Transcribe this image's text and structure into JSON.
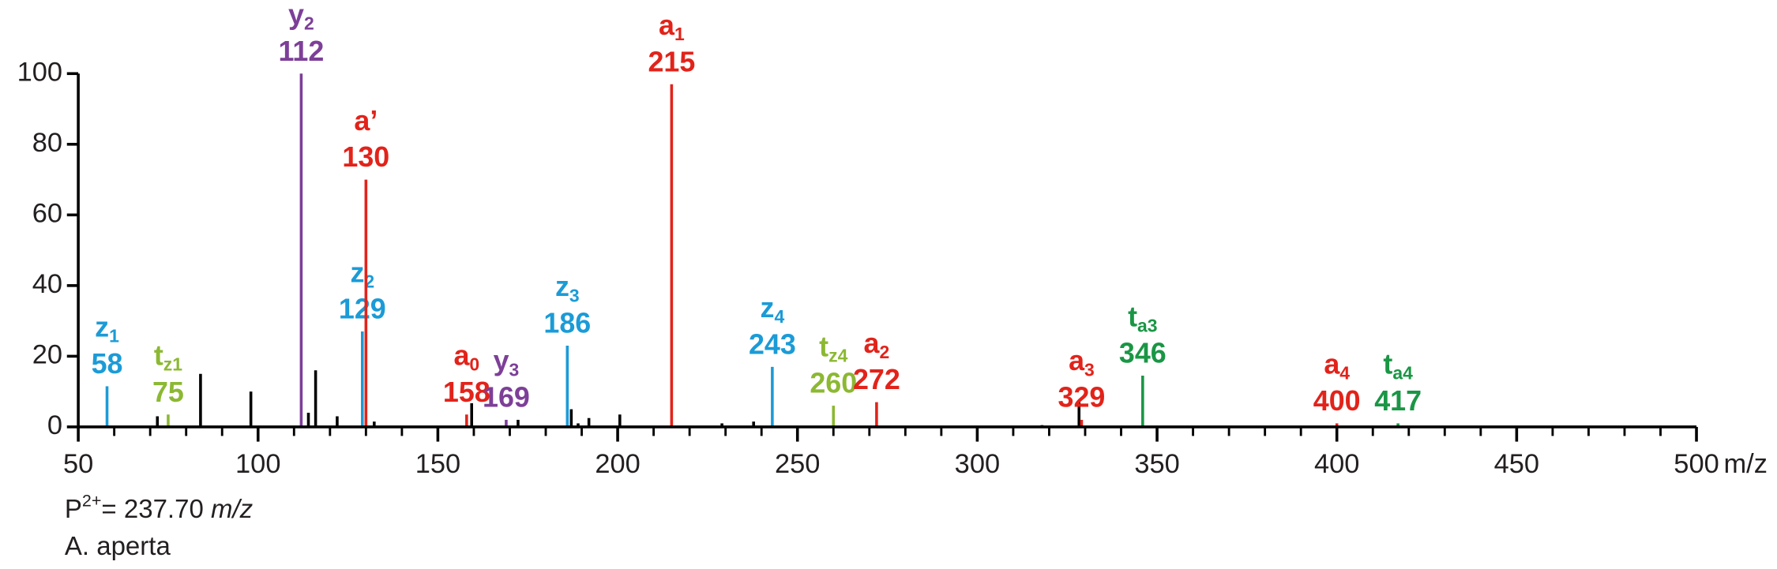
{
  "chart_data": {
    "type": "spectrum",
    "xlabel": "m/z",
    "xlim": [
      50,
      500
    ],
    "ylim": [
      0,
      100
    ],
    "xticks": [
      50,
      100,
      150,
      200,
      250,
      300,
      350,
      400,
      450,
      500
    ],
    "xminorticks": [
      60,
      70,
      80,
      90,
      110,
      120,
      130,
      140,
      160,
      170,
      180,
      190,
      210,
      220,
      230,
      240,
      260,
      270,
      280,
      290,
      310,
      320,
      330,
      340,
      360,
      370,
      380,
      390,
      410,
      420,
      430,
      440,
      460,
      470,
      480,
      490
    ],
    "yticks": [
      0,
      20,
      40,
      60,
      80,
      100
    ],
    "peaks": [
      {
        "ion": "z",
        "sub": "1",
        "mz": 58,
        "intensity": 11.5,
        "color": "#1b9bd7"
      },
      {
        "ion": "t",
        "sub": "z1",
        "mz": 75,
        "intensity": 3.5,
        "color": "#8cb833"
      },
      {
        "ion": "y",
        "sub": "2",
        "mz": 112,
        "intensity": 100,
        "color": "#7d3f98"
      },
      {
        "ion": "z",
        "sub": "2",
        "mz": 129,
        "intensity": 27,
        "color": "#1b9bd7"
      },
      {
        "ion": "a’",
        "mz": 130,
        "intensity": 70,
        "color": "#e2231a"
      },
      {
        "ion": "a",
        "sub": "0",
        "mz": 158,
        "intensity": 3.5,
        "color": "#e2231a"
      },
      {
        "ion": "y",
        "sub": "3",
        "mz": 169,
        "intensity": 2,
        "color": "#7d3f98"
      },
      {
        "ion": "z",
        "sub": "3",
        "mz": 186,
        "intensity": 23,
        "color": "#1b9bd7"
      },
      {
        "ion": "a",
        "sub": "1",
        "mz": 215,
        "intensity": 97,
        "color": "#e2231a"
      },
      {
        "ion": "z",
        "sub": "4",
        "mz": 243,
        "intensity": 17,
        "color": "#1b9bd7"
      },
      {
        "ion": "t",
        "sub": "z4",
        "mz": 260,
        "intensity": 6,
        "color": "#8cb833"
      },
      {
        "ion": "a",
        "sub": "2",
        "mz": 272,
        "intensity": 7,
        "color": "#e2231a"
      },
      {
        "ion": "a",
        "sub": "3",
        "mz": 329,
        "intensity": 2,
        "color": "#e2231a"
      },
      {
        "ion": "t",
        "sub": "a3",
        "mz": 346,
        "intensity": 14.5,
        "color": "#1a9645"
      },
      {
        "ion": "a",
        "sub": "4",
        "mz": 400,
        "intensity": 1,
        "color": "#e2231a"
      },
      {
        "ion": "t",
        "sub": "a4",
        "mz": 417,
        "intensity": 1,
        "color": "#1a9645"
      }
    ],
    "other_peaks": {
      "color": "#000000",
      "x": [
        72,
        84,
        98,
        114,
        116,
        122,
        132.3,
        159.4,
        172.3,
        187.1,
        189,
        192,
        200.6,
        229,
        237.8,
        318,
        328.3
      ],
      "values": [
        3,
        15,
        10,
        4,
        16,
        3,
        1.5,
        6.7,
        2,
        5,
        1,
        2.5,
        3.5,
        1,
        1.5,
        0.5,
        7
      ]
    },
    "precursor": {
      "symbol": "P",
      "charge": "2+",
      "text": "= 237.70",
      "unit": "m/z"
    },
    "species": "A. aperta"
  }
}
